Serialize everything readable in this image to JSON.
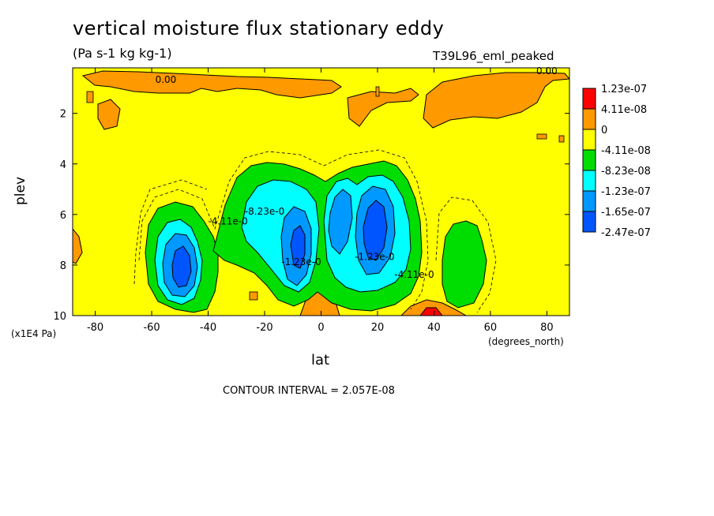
{
  "chart_data": {
    "type": "heatmap",
    "title": "vertical moisture flux stationary eddy",
    "units": "(Pa s-1 kg kg-1)",
    "run_label": "T39L96_eml_peaked",
    "xlabel": "lat",
    "xlabel_units": "(degrees_north)",
    "ylabel": "plev",
    "ylabel_units": "(x1E4 Pa)",
    "contour_interval_text": "CONTOUR INTERVAL = 2.057E-08",
    "xlim": [
      -88,
      88
    ],
    "ylim": [
      0.2,
      10
    ],
    "y_inverted": true,
    "x_ticks": [
      -80,
      -60,
      -40,
      -20,
      0,
      20,
      40,
      60,
      80
    ],
    "y_ticks": [
      2,
      4,
      6,
      8,
      10
    ],
    "legend": {
      "placement": "right",
      "levels": [
        "1.23e-07",
        "4.11e-08",
        "0",
        "-4.11e-08",
        "-8.23e-08",
        "-1.23e-07",
        "-1.65e-07",
        "-2.47e-07"
      ],
      "colors": [
        "#ff0000",
        "#ff9900",
        "#ffff00",
        "#00dd00",
        "#00ffff",
        "#0099ff",
        "#0055ff"
      ]
    },
    "contour_labels": [
      {
        "text": "0.00",
        "x": -55,
        "y": 0.8
      },
      {
        "text": "0.00",
        "x": 80,
        "y": 0.45
      },
      {
        "text": "-4.11e-0",
        "x": -33,
        "y": 6.4
      },
      {
        "text": "-8.23e-0",
        "x": -20,
        "y": 6.0
      },
      {
        "text": "-1.23e-0",
        "x": -7,
        "y": 8.0
      },
      {
        "text": "-1.23e-0",
        "x": 19,
        "y": 7.8
      },
      {
        "text": "-4.11e-0",
        "x": 33,
        "y": 8.5
      }
    ]
  }
}
